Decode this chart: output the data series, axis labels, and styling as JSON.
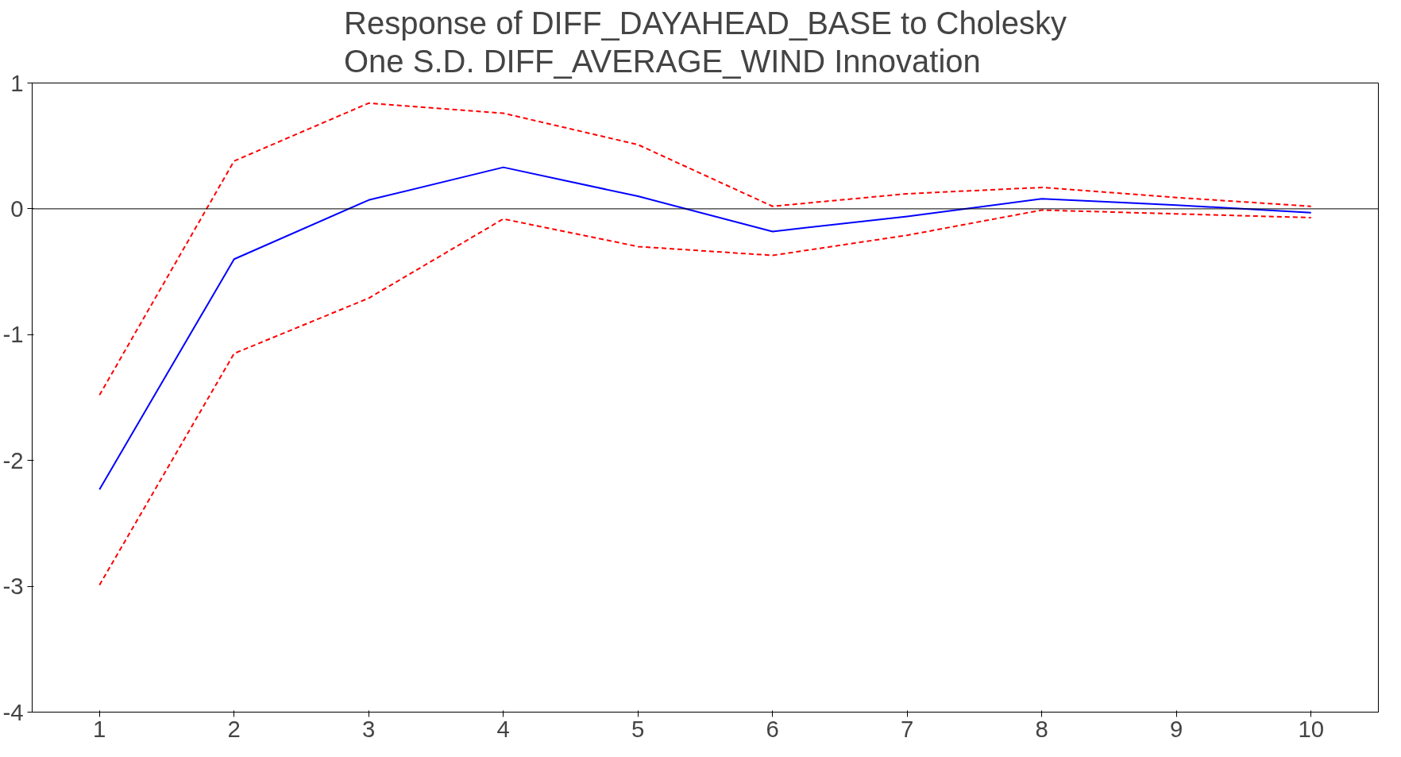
{
  "chart_data": {
    "type": "line",
    "title": "Response of DIFF_DAYAHEAD_BASE to Cholesky\nOne S.D. DIFF_AVERAGE_WIND Innovation",
    "categories": [
      "1",
      "2",
      "3",
      "4",
      "5",
      "6",
      "7",
      "8",
      "9",
      "10"
    ],
    "series": [
      {
        "color": "#0000ff",
        "line_style": "solid",
        "values": [
          -2.23,
          -0.4,
          0.07,
          0.33,
          0.1,
          -0.18,
          -0.06,
          0.08,
          0.03,
          -0.03
        ]
      },
      {
        "color": "#ff0000",
        "line_style": "dashed",
        "values": [
          -1.48,
          0.38,
          0.84,
          0.76,
          0.51,
          0.02,
          0.12,
          0.17,
          0.09,
          0.02
        ]
      },
      {
        "color": "#ff0000",
        "line_style": "dashed",
        "values": [
          -2.99,
          -1.15,
          -0.71,
          -0.08,
          -0.3,
          -0.37,
          -0.21,
          -0.01,
          -0.04,
          -0.07
        ]
      }
    ],
    "ylim": [
      -4,
      1
    ],
    "yticks": [
      1,
      0,
      -1,
      -2,
      -3,
      -4
    ],
    "grid": false,
    "marker": "none",
    "ref_lines": [
      {
        "axis": "y",
        "value": 0,
        "color": "#000000"
      }
    ]
  }
}
